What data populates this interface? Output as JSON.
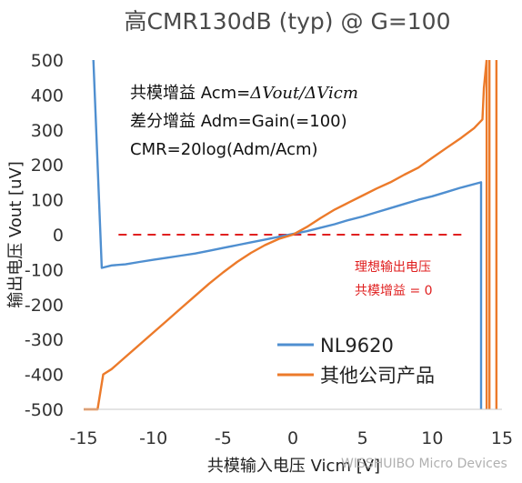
{
  "chart_data": {
    "type": "line",
    "title": "高CMR130dB (typ) @ G=100",
    "xlabel": "共模输入电压 Vicm [V]",
    "ylabel": "输出电压 Vout [uV]",
    "xlim": [
      -15,
      15
    ],
    "ylim": [
      -500,
      500
    ],
    "xticks": [
      -15,
      -10,
      -5,
      0,
      5,
      10,
      15
    ],
    "yticks": [
      500,
      400,
      300,
      200,
      100,
      0,
      -100,
      -200,
      -300,
      -400,
      -500
    ],
    "grid": false,
    "legend_position": "bottom-center",
    "series": [
      {
        "name": "NL9620",
        "color": "#4f8fd0",
        "points": [
          [
            -14.3,
            500
          ],
          [
            -13.7,
            -95
          ],
          [
            -13,
            -88
          ],
          [
            -12,
            -85
          ],
          [
            -11,
            -78
          ],
          [
            -10,
            -72
          ],
          [
            -9,
            -66
          ],
          [
            -8,
            -60
          ],
          [
            -7,
            -54
          ],
          [
            -6,
            -46
          ],
          [
            -5,
            -38
          ],
          [
            -4,
            -30
          ],
          [
            -3,
            -22
          ],
          [
            -2,
            -14
          ],
          [
            -1,
            -6
          ],
          [
            0,
            2
          ],
          [
            1,
            10
          ],
          [
            2,
            20
          ],
          [
            3,
            30
          ],
          [
            4,
            42
          ],
          [
            5,
            52
          ],
          [
            6,
            64
          ],
          [
            7,
            76
          ],
          [
            8,
            88
          ],
          [
            9,
            100
          ],
          [
            10,
            110
          ],
          [
            11,
            122
          ],
          [
            12,
            134
          ],
          [
            13.5,
            150
          ],
          [
            13.5,
            -500
          ]
        ]
      },
      {
        "name": "其他公司产品",
        "color": "#ec7a2a",
        "points": [
          [
            -15,
            -500
          ],
          [
            -14,
            -500
          ],
          [
            -13.6,
            -400
          ],
          [
            -13,
            -385
          ],
          [
            -12,
            -350
          ],
          [
            -11,
            -315
          ],
          [
            -10,
            -280
          ],
          [
            -9,
            -245
          ],
          [
            -8,
            -210
          ],
          [
            -7,
            -175
          ],
          [
            -6,
            -140
          ],
          [
            -5,
            -108
          ],
          [
            -4,
            -78
          ],
          [
            -3,
            -52
          ],
          [
            -2,
            -30
          ],
          [
            -1,
            -12
          ],
          [
            0,
            0
          ],
          [
            1,
            22
          ],
          [
            2,
            48
          ],
          [
            3,
            72
          ],
          [
            4,
            92
          ],
          [
            5,
            112
          ],
          [
            6,
            132
          ],
          [
            7,
            150
          ],
          [
            8,
            172
          ],
          [
            9,
            192
          ],
          [
            10,
            220
          ],
          [
            11,
            248
          ],
          [
            12,
            275
          ],
          [
            13,
            305
          ],
          [
            13.6,
            330
          ],
          [
            13.7,
            420
          ],
          [
            13.9,
            500
          ]
        ],
        "extra_segments": [
          [
            [
              13.9,
              500
            ],
            [
              13.9,
              -500
            ]
          ],
          [
            [
              14.1,
              500
            ],
            [
              14.1,
              -500
            ]
          ],
          [
            [
              14.6,
              500
            ],
            [
              14.6,
              -500
            ]
          ]
        ]
      }
    ],
    "reference_line": {
      "y": 0,
      "x_from": -12.5,
      "x_to": 12.5,
      "color": "#e02020",
      "style": "dashed"
    },
    "annotations": {
      "line1_prefix": "共模增益 Acm=",
      "line1_formula": "ΔVout/ΔVicm",
      "line2": "差分增益 Adm=Gain(=100)",
      "line3": "CMR=20log(Adm/Acm)",
      "ideal_1": "理想输出电压",
      "ideal_2": "共模增益 = 0"
    }
  },
  "watermark": "WISSHUIBO Micro Devices"
}
